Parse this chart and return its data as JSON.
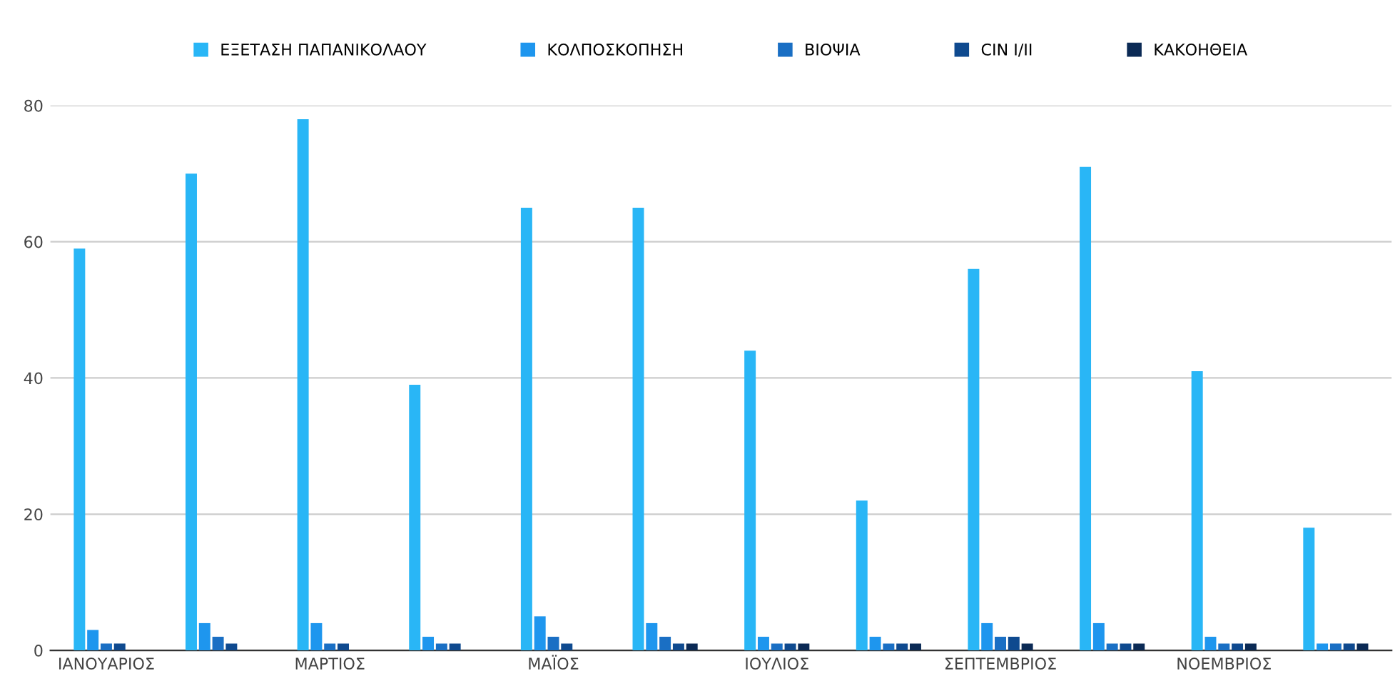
{
  "chart_data": {
    "type": "bar",
    "categories": [
      "ΙΑΝΟΥΑΡΙΟΣ",
      null,
      "ΜΑΡΤΙΟΣ",
      null,
      "ΜΑΪΟΣ",
      null,
      "ΙΟΥΛΙΟΣ",
      null,
      "ΣΕΠΤΕΜΒΡΙΟΣ",
      null,
      "ΝΟΕΜΒΡΙΟΣ",
      null
    ],
    "series": [
      {
        "name": "ΕΞΕΤΑΣΗ ΠΑΠΑΝΙΚΟΛΑΟΥ",
        "color": "#29b6f6",
        "values": [
          59,
          70,
          78,
          39,
          65,
          65,
          44,
          22,
          56,
          71,
          41,
          18
        ]
      },
      {
        "name": "ΚΟΛΠΟΣΚΟΠΗΣΗ",
        "color": "#1e96ee",
        "values": [
          3,
          4,
          4,
          2,
          5,
          4,
          2,
          2,
          4,
          4,
          2,
          1
        ]
      },
      {
        "name": "ΒΙΟΨΙΑ",
        "color": "#1a6fc4",
        "values": [
          1,
          2,
          1,
          1,
          2,
          2,
          1,
          1,
          2,
          1,
          1,
          1
        ]
      },
      {
        "name": "CIN I/II",
        "color": "#0f4a8f",
        "values": [
          1,
          1,
          1,
          1,
          1,
          1,
          1,
          1,
          2,
          1,
          1,
          1
        ]
      },
      {
        "name": "ΚΑΚΟΗΘΕΙΑ",
        "color": "#0b2a55",
        "values": [
          0,
          0,
          0,
          0,
          0,
          1,
          1,
          1,
          1,
          1,
          1,
          1
        ]
      }
    ],
    "ylim": [
      0,
      80
    ],
    "yticks": [
      0,
      20,
      40,
      60,
      80
    ],
    "grid": "y",
    "legend": "top"
  }
}
